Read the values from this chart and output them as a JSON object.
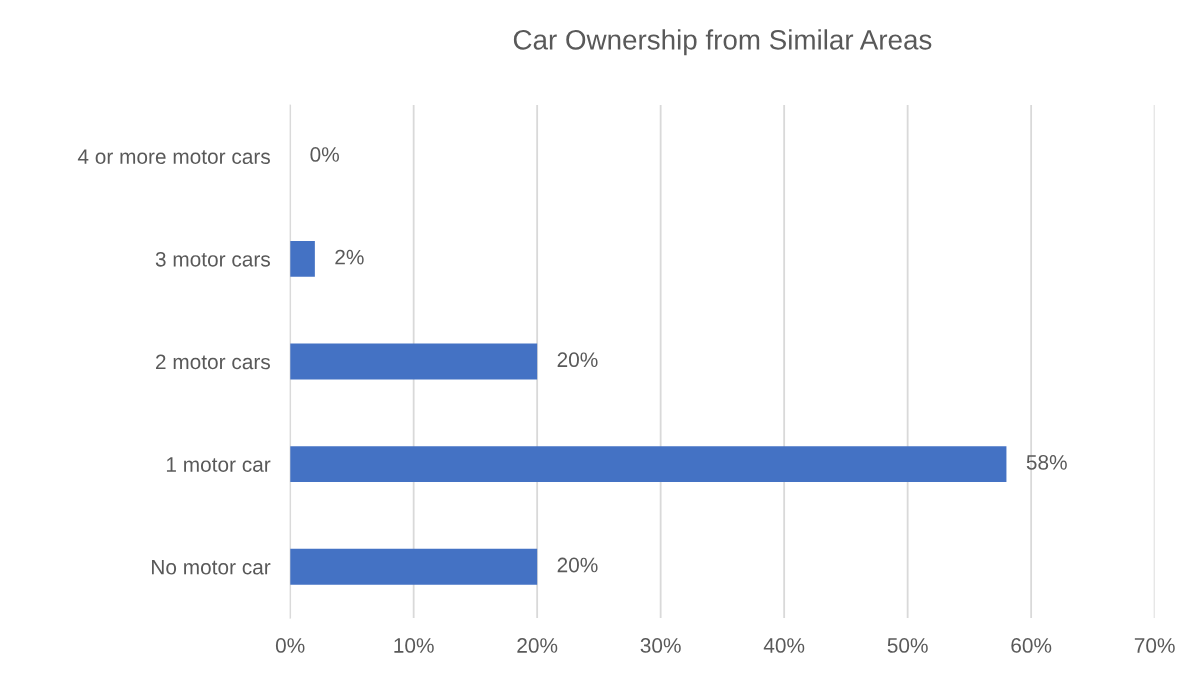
{
  "chart_data": {
    "type": "bar",
    "orientation": "horizontal",
    "title": "Car Ownership from Similar Areas",
    "categories": [
      "4 or more motor cars",
      "3 motor cars",
      "2 motor cars",
      "1 motor car",
      "No motor car"
    ],
    "values": [
      0,
      2,
      20,
      58,
      20
    ],
    "value_labels": [
      "0%",
      "2%",
      "20%",
      "58%",
      "20%"
    ],
    "color": "#4472c4",
    "xlim": [
      0,
      70
    ],
    "xticks": [
      {
        "value": 0,
        "label": "0%"
      },
      {
        "value": 10,
        "label": "10%"
      },
      {
        "value": 20,
        "label": "20%"
      },
      {
        "value": 30,
        "label": "30%"
      },
      {
        "value": 40,
        "label": "40%"
      },
      {
        "value": 50,
        "label": "50%"
      },
      {
        "value": 60,
        "label": "60%"
      },
      {
        "value": 70,
        "label": "70%"
      }
    ],
    "grid": "x",
    "legend": false
  }
}
